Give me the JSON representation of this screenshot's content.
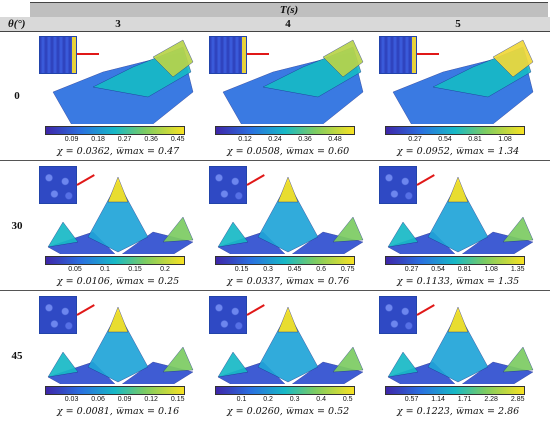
{
  "header": {
    "column_group": "T(s)",
    "row_label": "θ(°)"
  },
  "columns": [
    "3",
    "4",
    "5"
  ],
  "rows": [
    {
      "theta": "0",
      "cells": [
        {
          "ticks": [
            "0.09",
            "0.18",
            "0.27",
            "0.36",
            "0.45"
          ],
          "caption": "χ = 0.0362, w̅max = 0.47"
        },
        {
          "ticks": [
            "0.12",
            "0.24",
            "0.36",
            "0.48"
          ],
          "caption": "χ = 0.0508, w̅max = 0.60"
        },
        {
          "ticks": [
            "0.27",
            "0.54",
            "0.81",
            "1.08"
          ],
          "caption": "χ = 0.0952, w̅max = 1.34"
        }
      ]
    },
    {
      "theta": "30",
      "cells": [
        {
          "ticks": [
            "0.05",
            "0.1",
            "0.15",
            "0.2"
          ],
          "caption": "χ = 0.0106, w̅max = 0.25"
        },
        {
          "ticks": [
            "0.15",
            "0.3",
            "0.45",
            "0.6",
            "0.75"
          ],
          "caption": "χ = 0.0337, w̅max = 0.76"
        },
        {
          "ticks": [
            "0.27",
            "0.54",
            "0.81",
            "1.08",
            "1.35"
          ],
          "caption": "χ = 0.1133, w̅max = 1.35"
        }
      ]
    },
    {
      "theta": "45",
      "cells": [
        {
          "ticks": [
            "0.03",
            "0.06",
            "0.09",
            "0.12",
            "0.15"
          ],
          "caption": "χ = 0.0081, w̅max = 0.16"
        },
        {
          "ticks": [
            "0.1",
            "0.2",
            "0.3",
            "0.4",
            "0.5"
          ],
          "caption": "χ = 0.0260, w̅max = 0.52"
        },
        {
          "ticks": [
            "0.57",
            "1.14",
            "1.71",
            "2.28",
            "2.85"
          ],
          "caption": "χ = 0.1223, w̅max = 2.86"
        }
      ]
    }
  ],
  "colors": {
    "low": "#3e26a8",
    "mid": "#17b9c6",
    "high": "#f8e222",
    "arrow": "#e01818"
  }
}
